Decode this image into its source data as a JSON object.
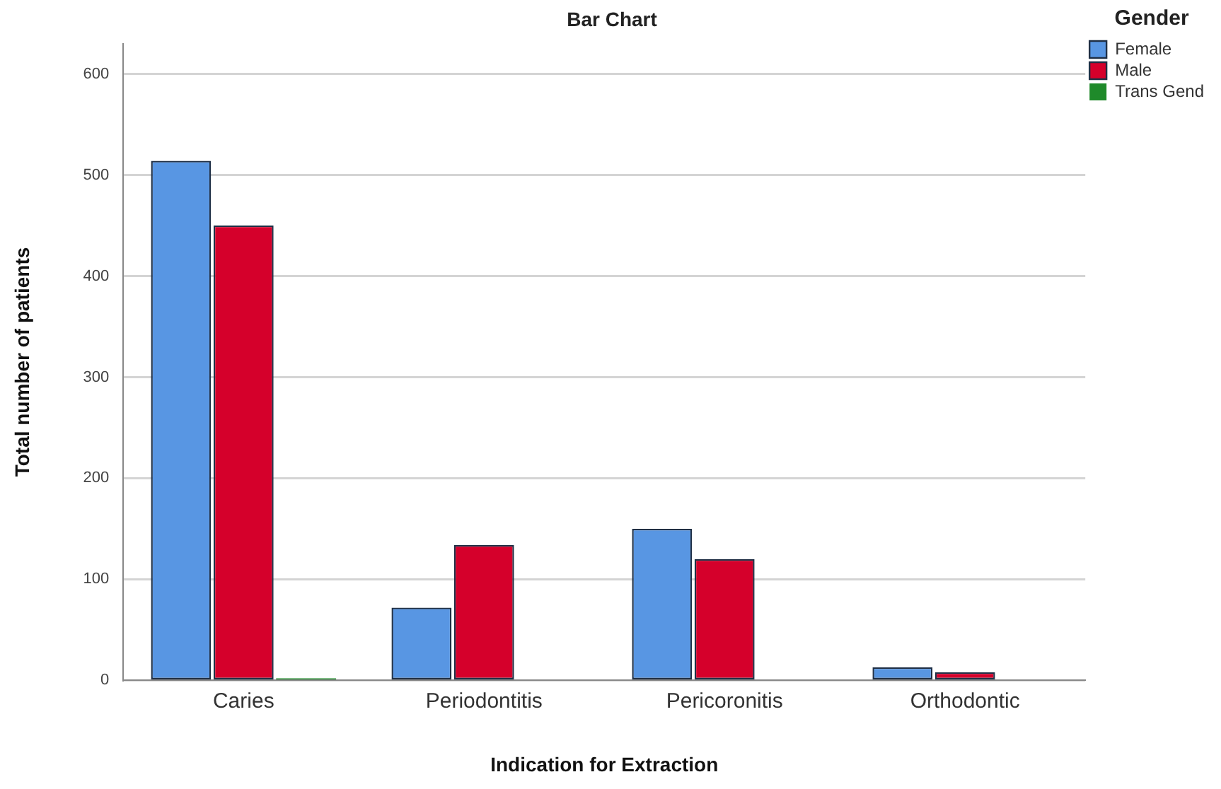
{
  "chart_data": {
    "type": "bar",
    "title": "Bar Chart",
    "xlabel": "Indication for Extraction",
    "ylabel": "Total number of patients",
    "legend_title": "Gender",
    "categories": [
      "Caries",
      "Periodontitis",
      "Pericoronitis",
      "Orthodontic"
    ],
    "series": [
      {
        "name": "Female",
        "color": "#5896e3",
        "values": [
          514,
          72,
          150,
          13
        ]
      },
      {
        "name": "Male",
        "color": "#d5002b",
        "values": [
          450,
          134,
          120,
          8
        ]
      },
      {
        "name": "Trans Gend",
        "color": "#1f8a2a",
        "values": [
          2,
          0,
          0,
          0
        ]
      }
    ],
    "ylim": [
      0,
      630
    ],
    "yticks": [
      0,
      100,
      200,
      300,
      400,
      500,
      600
    ],
    "grid": "y",
    "legend": "top right"
  }
}
